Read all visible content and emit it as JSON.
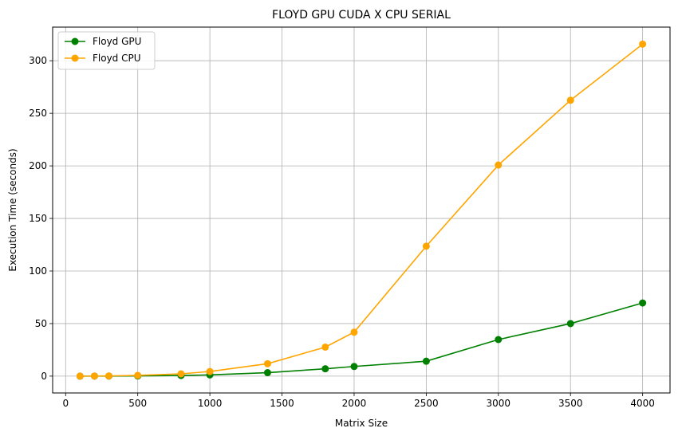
{
  "chart_data": {
    "type": "line",
    "title": "FLOYD GPU CUDA X CPU SERIAL",
    "xlabel": "Matrix Size",
    "ylabel": "Execution Time (seconds)",
    "xlim": [
      -90,
      4190
    ],
    "ylim": [
      -16,
      332
    ],
    "x_ticks": [
      0,
      500,
      1000,
      1500,
      2000,
      2500,
      3000,
      3500,
      4000
    ],
    "x_tick_labels": [
      "0",
      "500",
      "1000",
      "1500",
      "2000",
      "2500",
      "3000",
      "3500",
      "4000"
    ],
    "y_ticks": [
      0,
      50,
      100,
      150,
      200,
      250,
      300
    ],
    "y_tick_labels": [
      "0",
      "50",
      "100",
      "150",
      "200",
      "250",
      "300"
    ],
    "grid": true,
    "legend_position": "top-left",
    "x": [
      100,
      200,
      300,
      500,
      800,
      1000,
      1400,
      1800,
      2000,
      2500,
      3000,
      3500,
      4000
    ],
    "series": [
      {
        "name": "Floyd GPU",
        "color": "#008000",
        "values": [
          0.01,
          0.03,
          0.06,
          0.2,
          0.6,
          1.2,
          3.3,
          7.0,
          9.2,
          14.2,
          34.8,
          50.0,
          69.6
        ]
      },
      {
        "name": "Floyd CPU",
        "color": "#ffa500",
        "values": [
          0.02,
          0.1,
          0.2,
          0.7,
          2.2,
          4.4,
          11.8,
          27.6,
          41.8,
          123.6,
          200.8,
          262.4,
          315.8
        ]
      }
    ]
  }
}
